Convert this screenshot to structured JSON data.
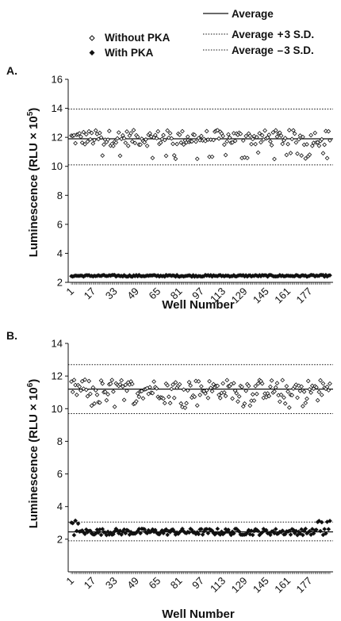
{
  "legend": {
    "without_pka": "Without PKA",
    "with_pka": "With PKA",
    "average": "Average",
    "plus3sd": "Average  + 3 S.D.",
    "minus3sd": "Average  – 3 S.D."
  },
  "chart_data": [
    {
      "panel": "A.",
      "type": "scatter",
      "xlabel": "Well Number",
      "ylabel_main": "Luminescence  (RLU × 10",
      "ylabel_exp": "5",
      "ylabel_close": ")",
      "ylim": [
        2,
        16
      ],
      "yticks": [
        2,
        4,
        6,
        8,
        10,
        12,
        14,
        16
      ],
      "xlim": [
        1,
        192
      ],
      "xticks": [
        1,
        17,
        33,
        49,
        65,
        81,
        97,
        113,
        129,
        145,
        161,
        177
      ],
      "grid": false,
      "series": [
        {
          "name": "Without PKA",
          "marker": "open-diamond",
          "n_points": 192,
          "center": 11.95,
          "spread": 0.55,
          "low_outlier": 10.7
        },
        {
          "name": "With PKA",
          "marker": "filled-diamond",
          "n_points": 192,
          "center": 2.45,
          "spread": 0.06
        }
      ],
      "lines": [
        {
          "label": "Average",
          "style": "solid",
          "y": 11.9
        },
        {
          "label": "Average + 3 S.D.",
          "style": "dotted",
          "y": 13.95
        },
        {
          "label": "Average – 3 S.D.",
          "style": "dotted",
          "y": 10.1
        }
      ]
    },
    {
      "panel": "B.",
      "type": "scatter",
      "xlabel": "Well Number",
      "ylabel_main": "Luminescence (RLU × 10",
      "ylabel_exp": "6",
      "ylabel_close": ")",
      "ylim": [
        0,
        14
      ],
      "yticks": [
        2,
        4,
        6,
        8,
        10,
        12,
        14
      ],
      "xlim": [
        1,
        192
      ],
      "xticks": [
        1,
        17,
        33,
        49,
        65,
        81,
        97,
        113,
        129,
        145,
        161,
        177
      ],
      "grid": false,
      "series": [
        {
          "name": "Without PKA",
          "marker": "open-diamond",
          "n_points": 192,
          "center": 11.2,
          "spread": 0.6,
          "low_outlier": 10.3
        },
        {
          "name": "With PKA",
          "marker": "filled-diamond",
          "n_points": 192,
          "center": 2.45,
          "spread": 0.2,
          "high_edges": 3.0
        }
      ],
      "lines": [
        {
          "label": "Average (Without PKA)",
          "style": "solid",
          "y": 11.2
        },
        {
          "label": "Average + 3 S.D. (Without PKA)",
          "style": "dotted",
          "y": 12.7
        },
        {
          "label": "Average – 3 S.D. (Without PKA)",
          "style": "dotted",
          "y": 9.7
        },
        {
          "label": "Average (With PKA)",
          "style": "solid",
          "y": 2.45
        },
        {
          "label": "Average + 3 S.D. (With PKA)",
          "style": "dotted",
          "y": 3.05
        },
        {
          "label": "Average – 3 S.D. (With PKA)",
          "style": "dotted",
          "y": 1.9
        }
      ]
    }
  ]
}
